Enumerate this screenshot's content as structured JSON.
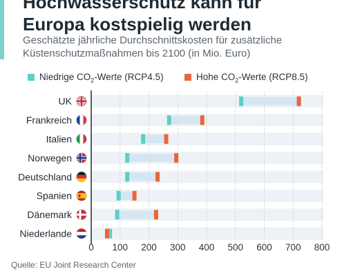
{
  "header": {
    "title_lines": [
      "Hochwasserschutz kann für",
      "Europa kostspielig werden"
    ],
    "subtitle_lines": [
      "Geschätzte jährliche Durchschnittskosten für zusätzliche",
      "Küstenschutzmaßnahmen bis 2100 (in Mio. Euro)"
    ]
  },
  "legend": {
    "low": {
      "pre": "Niedrige CO",
      "sub": "2",
      "post": "-Werte (RCP4.5)"
    },
    "high": {
      "pre": "Hohe CO",
      "sub": "2",
      "post": "-Werte (RCP8.5)"
    }
  },
  "colors": {
    "low": "#5ccfc6",
    "high": "#e8663a",
    "range": "#d5e6f2",
    "row_stripe": "#eef2f6",
    "axis": "#1f2a33",
    "grid": "#c9d1d8"
  },
  "chart_data": {
    "type": "bar",
    "categories": [
      "UK",
      "Frankreich",
      "Italien",
      "Norwegen",
      "Deutschland",
      "Spanien",
      "Dänemark",
      "Niederlande"
    ],
    "flag_icons": [
      "uk-flag-icon",
      "france-flag-icon",
      "italy-flag-icon",
      "norway-flag-icon",
      "germany-flag-icon",
      "spain-flag-icon",
      "denmark-flag-icon",
      "netherlands-flag-icon"
    ],
    "series": [
      {
        "name": "Niedrige CO2-Werte (RCP4.5)",
        "values": [
          520,
          270,
          180,
          125,
          125,
          95,
          90,
          65
        ]
      },
      {
        "name": "Hohe CO2-Werte (RCP8.5)",
        "values": [
          720,
          385,
          260,
          295,
          230,
          150,
          225,
          55
        ]
      }
    ],
    "xlim": [
      0,
      800
    ],
    "xticks": [
      0,
      100,
      200,
      300,
      400,
      500,
      600,
      700,
      800
    ],
    "grid": true,
    "legend_position": "top-left"
  },
  "footer": {
    "source": "Quelle: EU Joint Research Center"
  }
}
